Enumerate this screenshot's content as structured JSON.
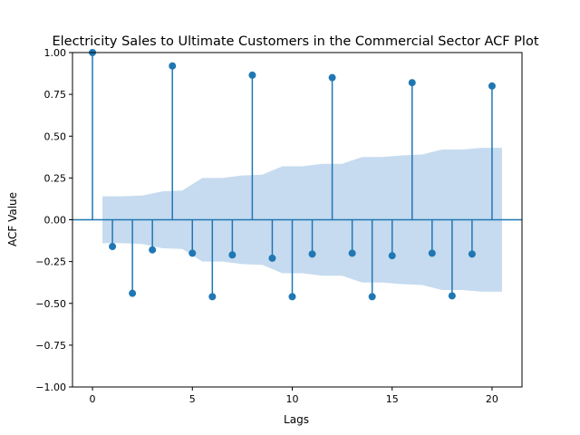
{
  "chart_data": {
    "type": "stem",
    "title": "Electricity Sales to Ultimate Customers in the Commercial Sector ACF Plot",
    "xlabel": "Lags",
    "ylabel": "ACF Value",
    "xlim": [
      -1,
      21.5
    ],
    "ylim": [
      -1.0,
      1.0
    ],
    "x_ticks": [
      "0",
      "5",
      "10",
      "15",
      "20"
    ],
    "y_ticks": [
      "−1.00",
      "−0.75",
      "−0.50",
      "−0.25",
      "0.00",
      "0.25",
      "0.50",
      "0.75",
      "1.00"
    ],
    "lags": [
      0,
      1,
      2,
      3,
      4,
      5,
      6,
      7,
      8,
      9,
      10,
      11,
      12,
      13,
      14,
      15,
      16,
      17,
      18,
      19,
      20
    ],
    "values": [
      1.0,
      -0.16,
      -0.44,
      -0.18,
      0.92,
      -0.2,
      -0.46,
      -0.21,
      0.865,
      -0.23,
      -0.46,
      -0.205,
      0.85,
      -0.2,
      -0.46,
      -0.215,
      0.82,
      -0.2,
      -0.455,
      -0.205,
      0.8
    ],
    "confidence_band": {
      "x": [
        0.5,
        1.5,
        2.5,
        3.5,
        4.5,
        5.5,
        6.5,
        7.5,
        8.5,
        9.5,
        10.5,
        11.5,
        12.5,
        13.5,
        14.5,
        15.5,
        16.5,
        17.5,
        18.5,
        19.5,
        20.5
      ],
      "upper": [
        0.14,
        0.14,
        0.145,
        0.17,
        0.175,
        0.25,
        0.25,
        0.265,
        0.27,
        0.32,
        0.32,
        0.335,
        0.335,
        0.375,
        0.375,
        0.385,
        0.39,
        0.42,
        0.42,
        0.43,
        0.43
      ]
    },
    "colors": {
      "stem": "#1f77b4",
      "band": "#c6dbef",
      "axis": "#000000"
    },
    "grid": false,
    "legend": "none"
  }
}
